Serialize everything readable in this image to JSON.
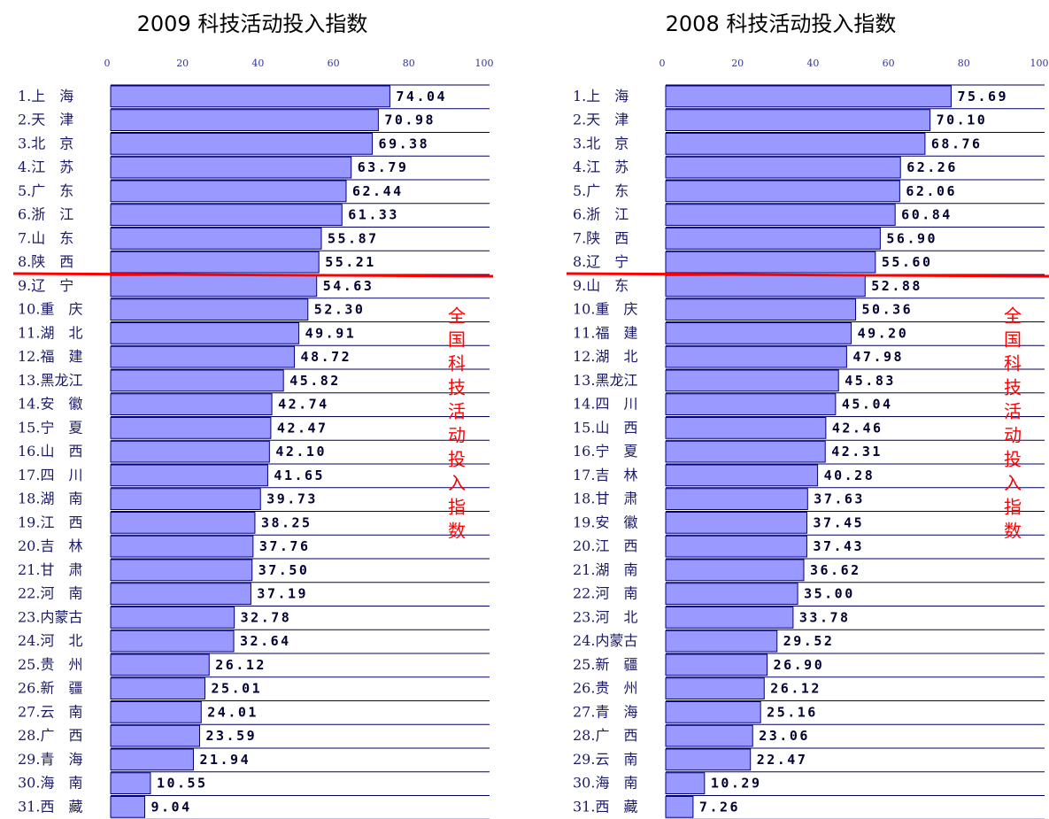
{
  "chart_data": [
    {
      "type": "bar",
      "title": "2009 科技活动投入指数",
      "categories": [
        "1.上　海",
        "2.天　津",
        "3.北　京",
        "4.江　苏",
        "5.广　东",
        "6.浙　江",
        "7.山　东",
        "8.陕　西",
        "9.辽　宁",
        "10.重　庆",
        "11.湖　北",
        "12.福　建",
        "13.黑龙江",
        "14.安　徽",
        "15.宁　夏",
        "16.山　西",
        "17.四　川",
        "18.湖　南",
        "19.江　西",
        "20.吉　林",
        "21.甘　肃",
        "22.河　南",
        "23.内蒙古",
        "24.河　北",
        "25.贵　州",
        "26.新　疆",
        "27.云　南",
        "28.广　西",
        "29.青　海",
        "30.海　南",
        "31.西　藏"
      ],
      "values": [
        74.04,
        70.98,
        69.38,
        63.79,
        62.44,
        61.33,
        55.87,
        55.21,
        54.63,
        52.3,
        49.91,
        48.72,
        45.82,
        42.74,
        42.47,
        42.1,
        41.65,
        39.73,
        38.25,
        37.76,
        37.5,
        37.19,
        32.78,
        32.64,
        26.12,
        25.01,
        24.01,
        23.59,
        21.94,
        10.55,
        9.04
      ],
      "value_labels": [
        "74.04",
        "70.98",
        "69.38",
        "63.79",
        "62.44",
        "61.33",
        "55.87",
        "55.21",
        "54.63",
        "52.30",
        "49.91",
        "48.72",
        "45.82",
        "42.74",
        "42.47",
        "42.10",
        "41.65",
        "39.73",
        "38.25",
        "37.76",
        "37.50",
        "37.19",
        "32.78",
        "32.64",
        "26.12",
        "25.01",
        "24.01",
        "23.59",
        "21.94",
        "10.55",
        "9.04"
      ],
      "color": "#9999ff",
      "xlim": [
        0,
        100
      ],
      "xticks": [
        0,
        20,
        40,
        60,
        80,
        100
      ],
      "annotation": "全国科技活动投入指数"
    },
    {
      "type": "bar",
      "title": "2008 科技活动投入指数",
      "categories": [
        "1.上　海",
        "2.天　津",
        "3.北　京",
        "4.江　苏",
        "5.广　东",
        "6.浙　江",
        "7.陕　西",
        "8.辽　宁",
        "9.山　东",
        "10.重　庆",
        "11.福　建",
        "12.湖　北",
        "13.黑龙江",
        "14.四　川",
        "15.山　西",
        "16.宁　夏",
        "17.吉　林",
        "18.甘　肃",
        "19.安　徽",
        "20.江　西",
        "21.湖　南",
        "22.河　南",
        "23.河　北",
        "24.内蒙古",
        "25.新　疆",
        "26.贵　州",
        "27.青　海",
        "28.广　西",
        "29.云　南",
        "30.海　南",
        "31.西　藏"
      ],
      "values": [
        75.69,
        70.1,
        68.76,
        62.26,
        62.06,
        60.84,
        56.9,
        55.6,
        52.88,
        50.36,
        49.2,
        47.98,
        45.83,
        45.04,
        42.46,
        42.31,
        40.28,
        37.63,
        37.45,
        37.43,
        36.62,
        35.0,
        33.78,
        29.52,
        26.9,
        26.12,
        25.16,
        23.06,
        22.47,
        10.29,
        7.26
      ],
      "value_labels": [
        "75.69",
        "70.10",
        "68.76",
        "62.26",
        "62.06",
        "60.84",
        "56.90",
        "55.60",
        "52.88",
        "50.36",
        "49.20",
        "47.98",
        "45.83",
        "45.04",
        "42.46",
        "42.31",
        "40.28",
        "37.63",
        "37.45",
        "37.43",
        "36.62",
        "35.00",
        "33.78",
        "29.52",
        "26.90",
        "26.12",
        "25.16",
        "23.06",
        "22.47",
        "10.29",
        "7.26"
      ],
      "color": "#9999ff",
      "xlim": [
        0,
        100
      ],
      "xticks": [
        0,
        20,
        40,
        60,
        80,
        100
      ],
      "annotation": "全国科技活动投入指数"
    }
  ]
}
